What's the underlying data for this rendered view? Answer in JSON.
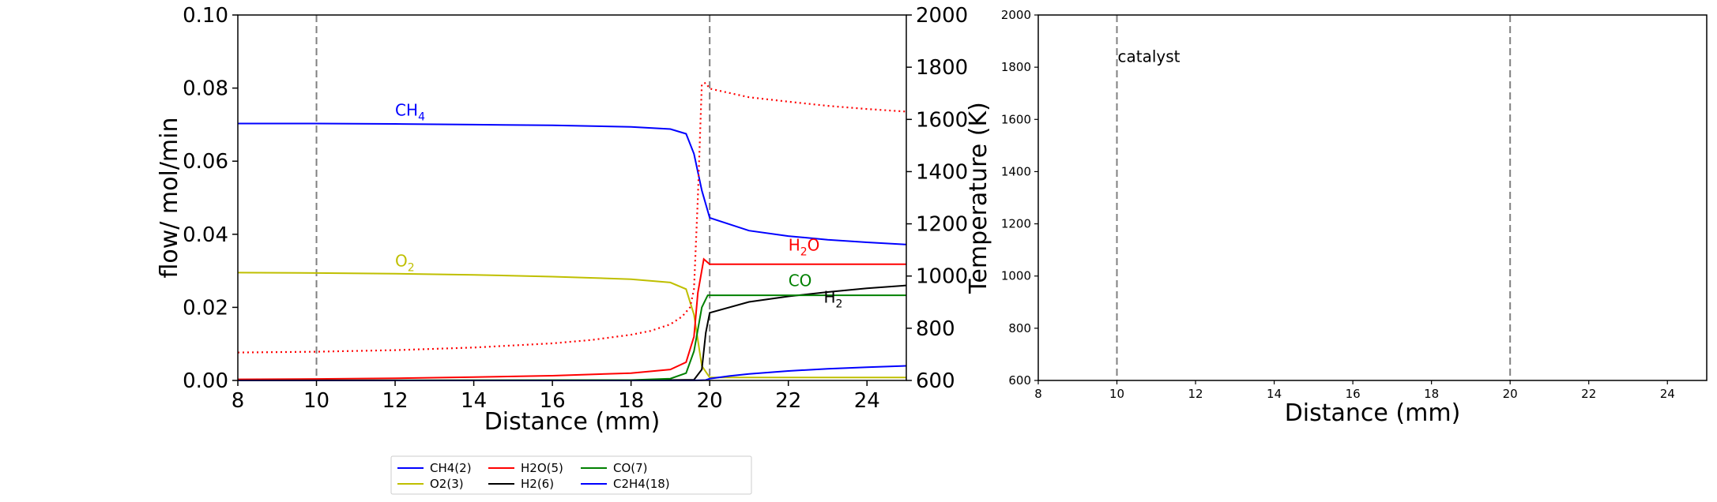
{
  "chart_data": [
    {
      "type": "line",
      "xlabel": "Distance (mm)",
      "ylabel": "flow/ mol/min",
      "y2label": "Temperature (K)",
      "xlim": [
        8,
        25
      ],
      "ylim": [
        0,
        0.1
      ],
      "y2lim": [
        600,
        2000
      ],
      "xticks": [
        "8",
        "10",
        "12",
        "14",
        "16",
        "18",
        "20",
        "22",
        "24"
      ],
      "yticks": [
        "0.00",
        "0.02",
        "0.04",
        "0.06",
        "0.08",
        "0.10"
      ],
      "y2ticks": [
        "600",
        "800",
        "1000",
        "1200",
        "1400",
        "1600",
        "1800",
        "2000"
      ],
      "vlines": [
        10,
        20
      ],
      "grid": false,
      "series": [
        {
          "name": "CH4(2)",
          "color": "#0000ff",
          "style": "solid",
          "x": [
            8,
            10,
            12,
            14,
            16,
            18,
            19,
            19.4,
            19.6,
            19.8,
            20,
            21,
            22,
            23,
            24,
            25
          ],
          "y": [
            0.0703,
            0.0703,
            0.0702,
            0.07,
            0.0698,
            0.0694,
            0.0688,
            0.0675,
            0.062,
            0.052,
            0.0445,
            0.041,
            0.0395,
            0.0385,
            0.0378,
            0.0372
          ]
        },
        {
          "name": "O2(3)",
          "color": "#bfbf00",
          "style": "solid",
          "x": [
            8,
            10,
            12,
            14,
            16,
            18,
            19,
            19.4,
            19.6,
            19.8,
            20,
            21,
            25
          ],
          "y": [
            0.0295,
            0.0294,
            0.0292,
            0.0289,
            0.0284,
            0.0277,
            0.0268,
            0.025,
            0.018,
            0.004,
            0.0008,
            0.0008,
            0.0008
          ]
        },
        {
          "name": "H2O(5)",
          "color": "#ff0000",
          "style": "solid",
          "x": [
            8,
            10,
            12,
            14,
            16,
            18,
            19,
            19.4,
            19.6,
            19.7,
            19.85,
            20,
            21,
            22,
            23,
            24,
            25
          ],
          "y": [
            0.0003,
            0.0004,
            0.0006,
            0.0009,
            0.0013,
            0.002,
            0.003,
            0.005,
            0.012,
            0.024,
            0.0332,
            0.0318,
            0.0318,
            0.0318,
            0.0318,
            0.0318,
            0.0318
          ]
        },
        {
          "name": "H2(6)",
          "color": "#000000",
          "style": "solid",
          "x": [
            8,
            18,
            19.6,
            19.8,
            19.9,
            20,
            21,
            22,
            23,
            24,
            25
          ],
          "y": [
            0,
            0,
            0.0002,
            0.003,
            0.013,
            0.0185,
            0.0215,
            0.023,
            0.0242,
            0.0252,
            0.026
          ]
        },
        {
          "name": "CO(7)",
          "color": "#008000",
          "style": "solid",
          "x": [
            8,
            18,
            19,
            19.4,
            19.6,
            19.8,
            19.95,
            20,
            21,
            25
          ],
          "y": [
            0,
            0.0001,
            0.0005,
            0.002,
            0.008,
            0.02,
            0.0233,
            0.0233,
            0.0233,
            0.0233
          ]
        },
        {
          "name": "C2H4(18)",
          "color": "#0000ff",
          "style": "solid",
          "x": [
            8,
            19.5,
            19.9,
            20,
            20.5,
            21,
            22,
            23,
            24,
            25
          ],
          "y": [
            0,
            0,
            0.0001,
            0.0005,
            0.0012,
            0.0018,
            0.0026,
            0.0032,
            0.0036,
            0.004
          ]
        },
        {
          "name": "",
          "color": "#ff0000",
          "style": "dotted",
          "axis": "right",
          "x": [
            8,
            10,
            12,
            14,
            16,
            17,
            18,
            18.5,
            19,
            19.3,
            19.5,
            19.6,
            19.7,
            19.8,
            19.9,
            20,
            21,
            22,
            23,
            24,
            25
          ],
          "y": [
            707,
            710,
            716,
            726,
            742,
            755,
            775,
            790,
            815,
            845,
            880,
            950,
            1300,
            1735,
            1740,
            1718,
            1685,
            1668,
            1652,
            1640,
            1630
          ]
        }
      ],
      "annotations": [
        {
          "text": "CH",
          "sub": "4",
          "x": 12.0,
          "y": 0.0725,
          "color": "#0000ff"
        },
        {
          "text": "O",
          "sub": "2",
          "x": 12.0,
          "y": 0.0312,
          "color": "#bfbf00"
        },
        {
          "text": "H",
          "sub": "2",
          "tail": "O",
          "x": 22.0,
          "y": 0.0355,
          "color": "#ff0000"
        },
        {
          "text": "CO",
          "x": 22.0,
          "y": 0.0258,
          "color": "#008000"
        },
        {
          "text": "H",
          "sub": "2",
          "x": 22.9,
          "y": 0.0213,
          "color": "#000000"
        }
      ],
      "legend": {
        "position": "bottom",
        "columns": 4
      }
    },
    {
      "type": "line",
      "xlabel": "Distance (mm)",
      "xlim": [
        8,
        25
      ],
      "ylim": [
        600,
        2000
      ],
      "xticks": [
        "8",
        "10",
        "12",
        "14",
        "16",
        "18",
        "20",
        "22",
        "24"
      ],
      "yticks": [
        "600",
        "800",
        "1000",
        "1200",
        "1400",
        "1600",
        "1800",
        "2000"
      ],
      "vlines": [
        10,
        20
      ],
      "grid": false,
      "series": [],
      "annotations": [
        {
          "text": "catalyst",
          "x": 10.0,
          "y": 1820,
          "color": "#000000"
        }
      ]
    }
  ]
}
